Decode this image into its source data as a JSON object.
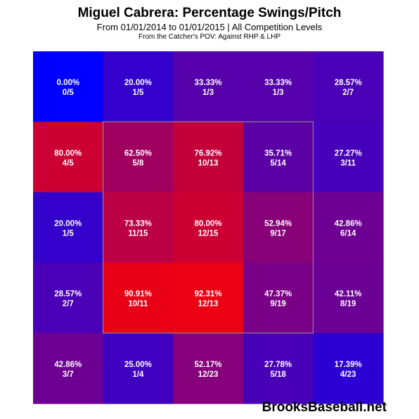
{
  "title": "Miguel Cabrera: Percentage Swings/Pitch",
  "subtitle": "From 01/01/2014 to 01/01/2015 | All Competition Levels",
  "subtitle2": "From the Catcher's POV:  Against RHP & LHP",
  "watermark": "BrooksBaseball.net",
  "chart_data": {
    "type": "heatmap",
    "rows": 5,
    "cols": 5,
    "strike_zone": {
      "rows": [
        1,
        3
      ],
      "cols": [
        1,
        3
      ]
    },
    "color_scale": {
      "low": "#0000ff",
      "high": "#ff0000"
    },
    "cells": [
      [
        {
          "pct_label": "0.00%",
          "count_label": "0/5",
          "value": 0.0
        },
        {
          "pct_label": "20.00%",
          "count_label": "1/5",
          "value": 20.0
        },
        {
          "pct_label": "33.33%",
          "count_label": "1/3",
          "value": 33.33
        },
        {
          "pct_label": "33.33%",
          "count_label": "1/3",
          "value": 33.33
        },
        {
          "pct_label": "28.57%",
          "count_label": "2/7",
          "value": 28.57
        }
      ],
      [
        {
          "pct_label": "80.00%",
          "count_label": "4/5",
          "value": 80.0
        },
        {
          "pct_label": "62.50%",
          "count_label": "5/8",
          "value": 62.5
        },
        {
          "pct_label": "76.92%",
          "count_label": "10/13",
          "value": 76.92
        },
        {
          "pct_label": "35.71%",
          "count_label": "5/14",
          "value": 35.71
        },
        {
          "pct_label": "27.27%",
          "count_label": "3/11",
          "value": 27.27
        }
      ],
      [
        {
          "pct_label": "20.00%",
          "count_label": "1/5",
          "value": 20.0
        },
        {
          "pct_label": "73.33%",
          "count_label": "11/15",
          "value": 73.33
        },
        {
          "pct_label": "80.00%",
          "count_label": "12/15",
          "value": 80.0
        },
        {
          "pct_label": "52.94%",
          "count_label": "9/17",
          "value": 52.94
        },
        {
          "pct_label": "42.86%",
          "count_label": "6/14",
          "value": 42.86
        }
      ],
      [
        {
          "pct_label": "28.57%",
          "count_label": "2/7",
          "value": 28.57
        },
        {
          "pct_label": "90.91%",
          "count_label": "10/11",
          "value": 90.91
        },
        {
          "pct_label": "92.31%",
          "count_label": "12/13",
          "value": 92.31
        },
        {
          "pct_label": "47.37%",
          "count_label": "9/19",
          "value": 47.37
        },
        {
          "pct_label": "42.11%",
          "count_label": "8/19",
          "value": 42.11
        }
      ],
      [
        {
          "pct_label": "42.86%",
          "count_label": "3/7",
          "value": 42.86
        },
        {
          "pct_label": "25.00%",
          "count_label": "1/4",
          "value": 25.0
        },
        {
          "pct_label": "52.17%",
          "count_label": "12/23",
          "value": 52.17
        },
        {
          "pct_label": "27.78%",
          "count_label": "5/18",
          "value": 27.78
        },
        {
          "pct_label": "17.39%",
          "count_label": "4/23",
          "value": 17.39
        }
      ]
    ]
  }
}
